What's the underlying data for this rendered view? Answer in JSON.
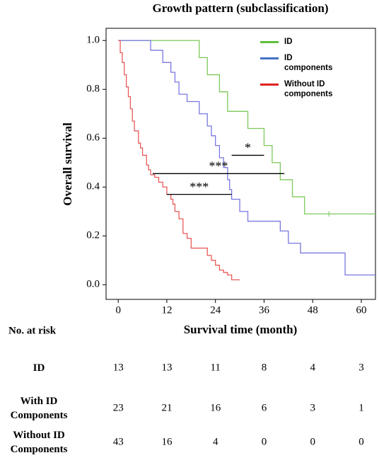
{
  "chart_data": {
    "type": "line",
    "title": "Growth pattern (subclassification)",
    "xlabel": "Survival time (month)",
    "ylabel": "Overall survival",
    "xlim": [
      -3,
      63.5
    ],
    "ylim": [
      -0.06,
      1.05
    ],
    "xticks": [
      0,
      12,
      24,
      36,
      48,
      60
    ],
    "yticks": [
      {
        "value": 0,
        "label": "0.0"
      },
      {
        "value": 0.2,
        "label": "0.2"
      },
      {
        "value": 0.4,
        "label": "0.4"
      },
      {
        "value": 0.6,
        "label": "0.6"
      },
      {
        "value": 0.8,
        "label": "0.8"
      },
      {
        "value": 1.0,
        "label": "1.0"
      }
    ],
    "legend": "upper right",
    "series": [
      {
        "name": "ID",
        "color": "#7cc95a",
        "legend_color": "#5cbf3a",
        "x": [
          0,
          20,
          22,
          25,
          27,
          32,
          36,
          38,
          40,
          43,
          46,
          63.5
        ],
        "values": [
          1.0,
          0.93,
          0.86,
          0.79,
          0.71,
          0.64,
          0.57,
          0.5,
          0.43,
          0.36,
          0.29,
          0.29
        ],
        "censored_x": [
          52
        ]
      },
      {
        "name": "ID components",
        "color": "#7878e0",
        "legend_color": "#4472c4",
        "x": [
          0,
          8,
          11,
          13,
          14,
          15,
          17,
          20,
          22,
          23,
          24,
          25,
          26,
          27,
          27.5,
          28,
          30,
          32,
          40,
          42,
          45,
          56,
          63.5
        ],
        "values": [
          1.0,
          0.96,
          0.91,
          0.87,
          0.83,
          0.78,
          0.75,
          0.7,
          0.65,
          0.61,
          0.57,
          0.52,
          0.48,
          0.43,
          0.39,
          0.35,
          0.3,
          0.26,
          0.22,
          0.17,
          0.13,
          0.04,
          0.04
        ],
        "censored_x": []
      },
      {
        "name": "Without ID components",
        "color": "#e85a5a",
        "legend_color": "#e02020",
        "x": [
          0,
          0.5,
          1,
          1.5,
          2,
          2.5,
          3,
          3.5,
          4,
          5,
          5.5,
          6,
          7,
          7.5,
          8,
          9,
          10,
          11,
          12,
          13,
          13.5,
          14,
          15,
          16,
          17,
          18,
          22,
          23,
          24,
          25,
          26,
          27,
          28,
          30
        ],
        "values": [
          1.0,
          0.95,
          0.91,
          0.86,
          0.81,
          0.77,
          0.72,
          0.67,
          0.63,
          0.58,
          0.56,
          0.53,
          0.49,
          0.47,
          0.45,
          0.44,
          0.42,
          0.4,
          0.37,
          0.35,
          0.33,
          0.3,
          0.27,
          0.21,
          0.19,
          0.15,
          0.12,
          0.1,
          0.08,
          0.06,
          0.05,
          0.04,
          0.02,
          0.02
        ],
        "censored_x": []
      }
    ],
    "annotations": [
      {
        "text": "*",
        "x": [
          28,
          36
        ],
        "y": 0.53
      },
      {
        "text": "***",
        "x": [
          8.5,
          41
        ],
        "y": 0.455
      },
      {
        "text": "***",
        "x": [
          12,
          28
        ],
        "y": 0.37
      }
    ],
    "risk_table": {
      "title": "No. at risk",
      "rows": [
        {
          "label": "ID",
          "values": [
            13,
            13,
            11,
            8,
            4,
            3
          ]
        },
        {
          "label": "With ID Components",
          "values": [
            23,
            21,
            16,
            6,
            3,
            1
          ]
        },
        {
          "label": "Without ID Components",
          "values": [
            43,
            16,
            4,
            0,
            0,
            0
          ]
        }
      ]
    }
  }
}
